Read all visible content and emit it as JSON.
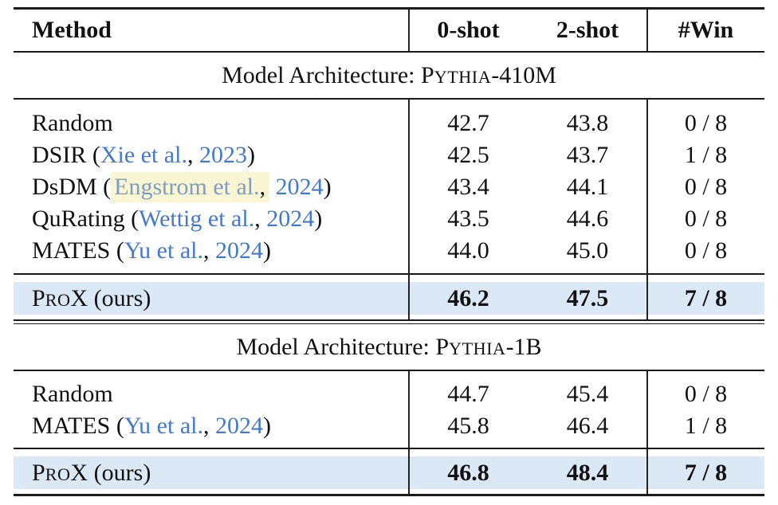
{
  "styles": {
    "link_blue": "#4579c9",
    "muted_link_blue": "#7b9dc7",
    "highlight_yellow": "#faf6d3",
    "row_highlight_blue": "#dbe8f6",
    "rule_color": "#1a1a1a"
  },
  "table": {
    "columns": [
      "Method",
      "0-shot",
      "2-shot",
      "#Win"
    ],
    "sections": [
      {
        "header": [
          {
            "t": "Model Architecture: ",
            "s": "p"
          },
          {
            "t": "P",
            "s": "p"
          },
          {
            "t": "YTHIA",
            "s": "sc"
          },
          {
            "t": "-410M",
            "s": "p"
          }
        ],
        "rows": [
          {
            "method": [
              {
                "t": "Random",
                "s": "p"
              }
            ],
            "cells": [
              "42.7",
              "43.8",
              "0 / 8"
            ]
          },
          {
            "method": [
              {
                "t": "DSIR (",
                "s": "p"
              },
              {
                "t": "Xie et al.",
                "s": "link"
              },
              {
                "t": ", ",
                "s": "p"
              },
              {
                "t": "2023",
                "s": "link"
              },
              {
                "t": ")",
                "s": "p"
              }
            ],
            "cells": [
              "42.5",
              "43.7",
              "1 / 8"
            ]
          },
          {
            "method": [
              {
                "t": "DsDM (",
                "s": "p"
              },
              {
                "t": "Engstrom et al.",
                "s": "hl-link"
              },
              {
                "t": ",",
                "s": "hl"
              },
              {
                "t": " ",
                "s": "p"
              },
              {
                "t": "2024",
                "s": "link"
              },
              {
                "t": ")",
                "s": "p"
              }
            ],
            "cells": [
              "43.4",
              "44.1",
              "0 / 8"
            ]
          },
          {
            "method": [
              {
                "t": "QuRating (",
                "s": "p"
              },
              {
                "t": "Wettig et al.",
                "s": "link"
              },
              {
                "t": ", ",
                "s": "p"
              },
              {
                "t": "2024",
                "s": "link"
              },
              {
                "t": ")",
                "s": "p"
              }
            ],
            "cells": [
              "43.5",
              "44.6",
              "0 / 8"
            ]
          },
          {
            "method": [
              {
                "t": "MATES (",
                "s": "p"
              },
              {
                "t": "Yu et al.",
                "s": "link"
              },
              {
                "t": ", ",
                "s": "p"
              },
              {
                "t": "2024",
                "s": "link"
              },
              {
                "t": ")",
                "s": "p"
              }
            ],
            "cells": [
              "44.0",
              "45.0",
              "0 / 8"
            ]
          }
        ],
        "highlight_row": {
          "method": [
            {
              "t": "P",
              "s": "p"
            },
            {
              "t": "RO",
              "s": "sc"
            },
            {
              "t": "X (ours)",
              "s": "p"
            }
          ],
          "cells": [
            "46.2",
            "47.5",
            "7 / 8"
          ]
        }
      },
      {
        "header": [
          {
            "t": "Model Architecture: ",
            "s": "p"
          },
          {
            "t": "P",
            "s": "p"
          },
          {
            "t": "YTHIA",
            "s": "sc"
          },
          {
            "t": "-1B",
            "s": "p"
          }
        ],
        "rows": [
          {
            "method": [
              {
                "t": "Random",
                "s": "p"
              }
            ],
            "cells": [
              "44.7",
              "45.4",
              "0 / 8"
            ]
          },
          {
            "method": [
              {
                "t": "MATES (",
                "s": "p"
              },
              {
                "t": "Yu et al.",
                "s": "link"
              },
              {
                "t": ", ",
                "s": "p"
              },
              {
                "t": "2024",
                "s": "link"
              },
              {
                "t": ")",
                "s": "p"
              }
            ],
            "cells": [
              "45.8",
              "46.4",
              "1 / 8"
            ]
          }
        ],
        "highlight_row": {
          "method": [
            {
              "t": "P",
              "s": "p"
            },
            {
              "t": "RO",
              "s": "sc"
            },
            {
              "t": "X (ours)",
              "s": "p"
            }
          ],
          "cells": [
            "46.8",
            "48.4",
            "7 / 8"
          ]
        }
      }
    ]
  }
}
